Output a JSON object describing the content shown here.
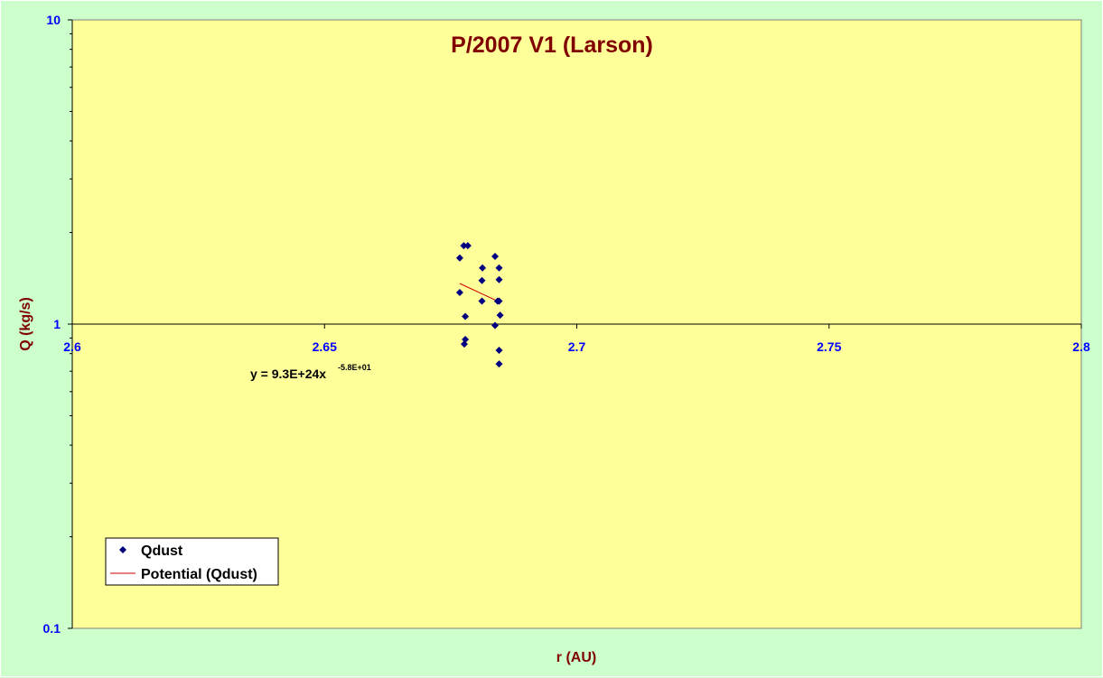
{
  "chart_data": {
    "type": "scatter",
    "title": "P/2007 V1 (Larson)",
    "xlabel": "r (AU)",
    "ylabel": "Q (kg/s)",
    "xlim": [
      2.6,
      2.8
    ],
    "ylim": [
      0.1,
      10
    ],
    "yscale": "log",
    "grid": false,
    "x_ticks": [
      "2.6",
      "2.65",
      "2.7",
      "2.75",
      "2.8"
    ],
    "y_ticks": [
      "0.1",
      "1",
      "10"
    ],
    "legend_position": "bottom-left",
    "colors": {
      "plot_area": "#ffff99",
      "background": "#ccffcc",
      "marker": "#000080",
      "trendline": "#cc0000",
      "text_axes": "#0000ff",
      "text_titles": "#800000"
    },
    "series": [
      {
        "name": "Qdust",
        "marker": "diamond",
        "points": [
          [
            2.6776,
            1.81
          ],
          [
            2.6784,
            1.81
          ],
          [
            2.6768,
            1.65
          ],
          [
            2.6768,
            1.27
          ],
          [
            2.6779,
            1.06
          ],
          [
            2.6779,
            0.89
          ],
          [
            2.6777,
            0.86
          ],
          [
            2.6813,
            1.53
          ],
          [
            2.6812,
            1.39
          ],
          [
            2.6812,
            1.19
          ],
          [
            2.6838,
            1.67
          ],
          [
            2.6846,
            1.53
          ],
          [
            2.6846,
            1.4
          ],
          [
            2.6843,
            1.19
          ],
          [
            2.6846,
            1.19
          ],
          [
            2.6848,
            1.07
          ],
          [
            2.6838,
            0.99
          ],
          [
            2.6846,
            0.82
          ],
          [
            2.6846,
            0.74
          ]
        ]
      },
      {
        "name": "Potential (Qdust)",
        "type": "trendline",
        "x": [
          2.6768,
          2.6848
        ],
        "y": [
          1.36,
          1.18
        ]
      }
    ],
    "annotation": {
      "text": "y = 9.3E+24x",
      "superscript": "-5.8E+01"
    }
  }
}
